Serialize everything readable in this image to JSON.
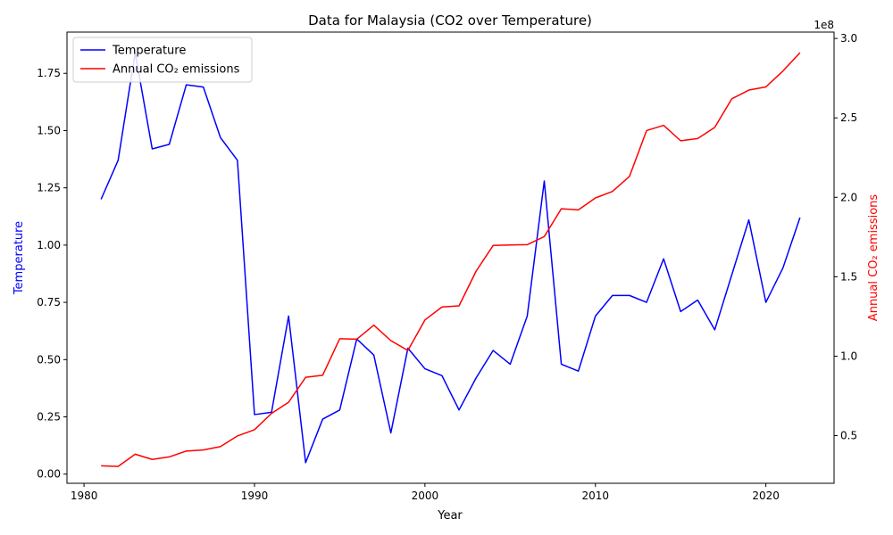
{
  "chart_data": {
    "type": "line",
    "title": "Data for Malaysia (CO2 over Temperature)",
    "xlabel": "Year",
    "ylabel_left": "Temperature",
    "ylabel_right": "Annual CO₂ emissions",
    "right_axis_multiplier": "1e8",
    "xlim": [
      1979,
      2024
    ],
    "ylim_left": [
      -0.04,
      1.93
    ],
    "ylim_right": [
      20000000.0,
      304000000.0
    ],
    "xticks": [
      1980,
      1990,
      2000,
      2010,
      2020
    ],
    "yticks_left": [
      0.0,
      0.25,
      0.5,
      0.75,
      1.0,
      1.25,
      1.5,
      1.75
    ],
    "yticks_left_labels": [
      "0.00",
      "0.25",
      "0.50",
      "0.75",
      "1.00",
      "1.25",
      "1.50",
      "1.75"
    ],
    "yticks_right": [
      50000000.0,
      100000000.0,
      150000000.0,
      200000000.0,
      250000000.0,
      300000000.0
    ],
    "yticks_right_labels": [
      "0.5",
      "1.0",
      "1.5",
      "2.0",
      "2.5",
      "3.0"
    ],
    "legend_position": "upper-left",
    "x": [
      1981,
      1982,
      1983,
      1984,
      1985,
      1986,
      1987,
      1988,
      1989,
      1990,
      1991,
      1992,
      1993,
      1994,
      1995,
      1996,
      1997,
      1998,
      1999,
      2000,
      2001,
      2002,
      2003,
      2004,
      2005,
      2006,
      2007,
      2008,
      2009,
      2010,
      2011,
      2012,
      2013,
      2014,
      2015,
      2016,
      2017,
      2018,
      2019,
      2020,
      2021,
      2022
    ],
    "series": [
      {
        "name": "Temperature",
        "axis": "left",
        "color": "#0000ff",
        "values": [
          1.2,
          1.37,
          1.84,
          1.42,
          1.44,
          1.7,
          1.69,
          1.47,
          1.37,
          0.26,
          0.27,
          0.69,
          0.05,
          0.24,
          0.28,
          0.59,
          0.52,
          0.18,
          0.55,
          0.46,
          0.43,
          0.28,
          0.42,
          0.54,
          0.48,
          0.69,
          1.28,
          0.48,
          0.45,
          0.69,
          0.78,
          0.78,
          0.75,
          0.94,
          0.71,
          0.76,
          0.63,
          0.87,
          1.11,
          0.75,
          0.9,
          1.12
        ]
      },
      {
        "name": "Annual CO₂ emissions",
        "axis": "right",
        "color": "#ff0000",
        "values": [
          31000000,
          30600000,
          38300000,
          35000000,
          36600000,
          40300000,
          41000000,
          43100000,
          49800000,
          53700000,
          64000000,
          71000000,
          86700000,
          88000000,
          111000000,
          110700000,
          119500000,
          109800000,
          103600000,
          122800000,
          131000000,
          131700000,
          153500000,
          169700000,
          170000000,
          170200000,
          175300000,
          192800000,
          192100000,
          199600000,
          203700000,
          213200000,
          242000000,
          245300000,
          235600000,
          237000000,
          244000000,
          262000000,
          267500000,
          269500000,
          279500000,
          291000000
        ]
      }
    ]
  }
}
